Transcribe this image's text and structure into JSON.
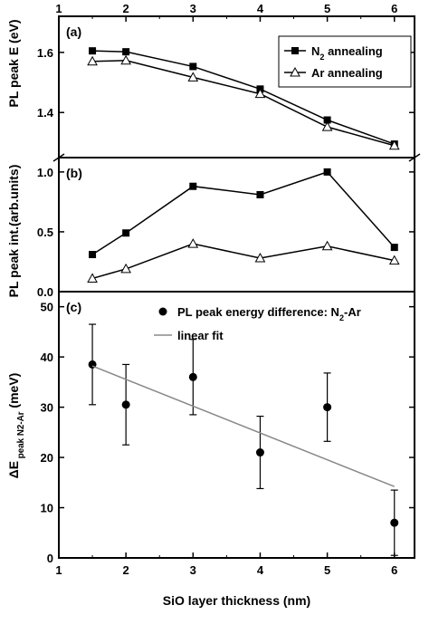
{
  "top_axis": {
    "ticks": [
      "1",
      "2",
      "3",
      "4",
      "5",
      "6"
    ]
  },
  "x_axis": {
    "label": "SiO layer thickness (nm)",
    "range": [
      1,
      6.3
    ],
    "ticks": [
      "1",
      "2",
      "3",
      "4",
      "5",
      "6"
    ]
  },
  "chart_data": [
    {
      "panel": "(a)",
      "type": "line",
      "ylabel": "PL peak E (eV)",
      "xlim": [
        1,
        6.3
      ],
      "ylim": [
        1.25,
        1.72
      ],
      "yticks": [
        1.4,
        1.6
      ],
      "ytick_labels": [
        "1.4",
        "1.6"
      ],
      "legend_position": "top-right",
      "series": [
        {
          "name": "N₂ annealing",
          "marker": "filled-square",
          "x": [
            1.5,
            2,
            3,
            4,
            5,
            6
          ],
          "y": [
            1.605,
            1.602,
            1.553,
            1.478,
            1.375,
            1.295
          ]
        },
        {
          "name": "Ar annealing",
          "marker": "open-triangle",
          "x": [
            1.5,
            2,
            3,
            4,
            5,
            6
          ],
          "y": [
            1.57,
            1.573,
            1.517,
            1.462,
            1.352,
            1.29
          ]
        }
      ]
    },
    {
      "panel": "(b)",
      "type": "line",
      "ylabel": "PL peak int.(arb.units)",
      "xlim": [
        1,
        6.3
      ],
      "ylim": [
        0.0,
        1.12
      ],
      "yticks": [
        0.0,
        0.5,
        1.0
      ],
      "ytick_labels": [
        "0.0",
        "0.5",
        "1.0"
      ],
      "series": [
        {
          "name": "N₂ annealing",
          "marker": "filled-square",
          "x": [
            1.5,
            2,
            3,
            4,
            5,
            6
          ],
          "y": [
            0.31,
            0.49,
            0.88,
            0.81,
            1.0,
            0.37
          ]
        },
        {
          "name": "Ar annealing",
          "marker": "open-triangle",
          "x": [
            1.5,
            2,
            3,
            4,
            5,
            6
          ],
          "y": [
            0.11,
            0.19,
            0.4,
            0.28,
            0.38,
            0.26
          ]
        }
      ]
    },
    {
      "panel": "(c)",
      "type": "scatter",
      "ylabel": "ΔE peak N2-Ar (meV)",
      "xlim": [
        1,
        6.3
      ],
      "ylim": [
        0,
        53
      ],
      "yticks": [
        0,
        10,
        20,
        30,
        40,
        50
      ],
      "ytick_labels": [
        "0",
        "10",
        "20",
        "30",
        "40",
        "50"
      ],
      "legend_position": "top-right",
      "series": [
        {
          "name": "PL peak energy difference: N₂-Ar",
          "marker": "filled-circle",
          "x": [
            1.5,
            2,
            3,
            4,
            5,
            6
          ],
          "y": [
            38.5,
            30.5,
            36.0,
            21.0,
            30.0,
            7.0
          ],
          "error": [
            8.0,
            8.0,
            7.5,
            7.2,
            6.8,
            6.5
          ]
        },
        {
          "name": "linear fit",
          "type": "line",
          "x": [
            1.5,
            6
          ],
          "y": [
            38.2,
            14.2
          ]
        }
      ]
    }
  ]
}
